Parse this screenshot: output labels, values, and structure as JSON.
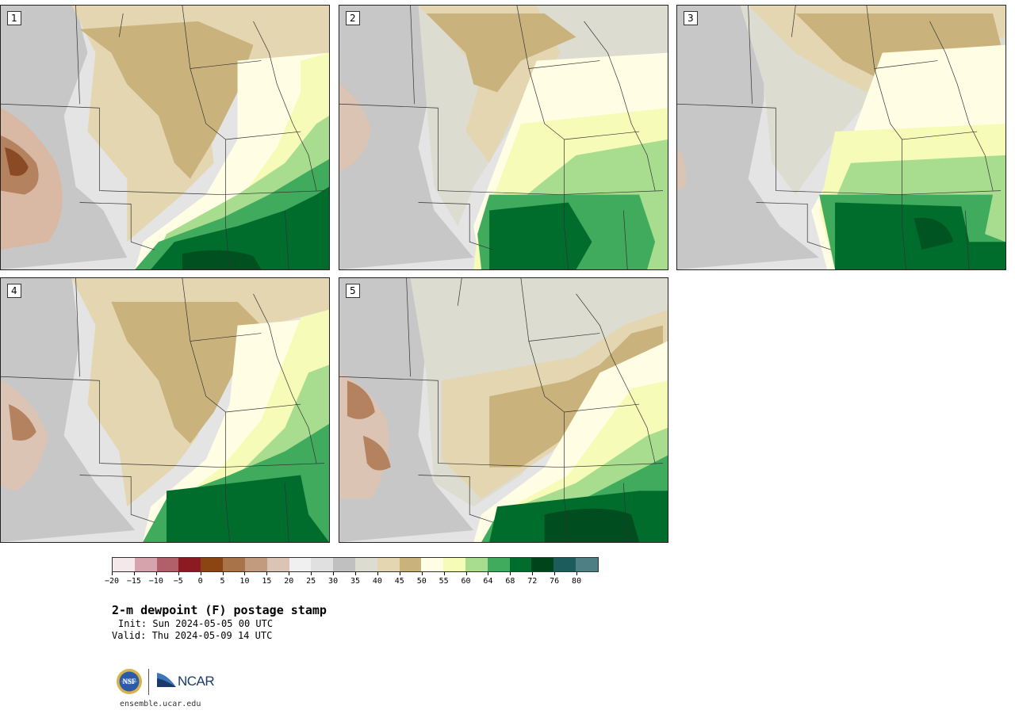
{
  "panels": [
    {
      "label": "1",
      "scheme": "dry_west_moist_southeast"
    },
    {
      "label": "2",
      "scheme": "moist_east_core"
    },
    {
      "label": "3",
      "scheme": "moist_southeast_strong"
    },
    {
      "label": "4",
      "scheme": "narrow_moist_band"
    },
    {
      "label": "5",
      "scheme": "moist_south_core"
    }
  ],
  "colorbar": {
    "colors": [
      "#f4e8ea",
      "#d4a3ac",
      "#b1606a",
      "#8b1a22",
      "#8b4513",
      "#a97349",
      "#c29a7e",
      "#dcc4b4",
      "#f0f0f0",
      "#e0e0e0",
      "#c0c0c0",
      "#dcdcd0",
      "#e4d6b0",
      "#c9b27c",
      "#fffee4",
      "#f7fbb8",
      "#a8dd8f",
      "#41ab5d",
      "#006d2c",
      "#00441b",
      "#1c5d5c",
      "#4e7f85"
    ],
    "tick_labels": [
      "−20",
      "−15",
      "−10",
      "−5",
      "0",
      "5",
      "10",
      "15",
      "20",
      "25",
      "30",
      "35",
      "40",
      "45",
      "50",
      "55",
      "60",
      "64",
      "68",
      "72",
      "76",
      "80"
    ]
  },
  "title": "2-m dewpoint (F) postage stamp",
  "init": "Init: Sun 2024-05-05 00 UTC",
  "valid": "Valid: Thu 2024-05-09 14 UTC",
  "website": "ensemble.ucar.edu",
  "logos": {
    "nsf": "NSF",
    "ncar": "NCAR"
  }
}
